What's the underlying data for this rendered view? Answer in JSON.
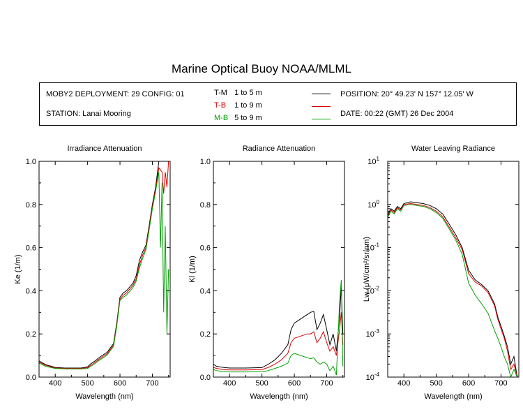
{
  "title": "Marine Optical Buoy NOAA/MLML",
  "info": {
    "deployment": "MOBY2 DEPLOYMENT: 29 CONFIG: 01",
    "station": "STATION: Lanai Mooring",
    "position": "POSITION: 20° 49.23' N   157° 12.05' W",
    "date": "DATE: 00:22 (GMT) 26 Dec 2004"
  },
  "legend": [
    {
      "code": "T-M",
      "range": "1 to 5  m",
      "color": "#000000"
    },
    {
      "code": "T-B",
      "range": "1 to 9  m",
      "color": "#dd0000"
    },
    {
      "code": "M-B",
      "range": "5 to 9  m",
      "color": "#00a000"
    }
  ],
  "chart_data": [
    {
      "type": "line",
      "title": "Irradiance Attenuation",
      "xlabel": "Wavelength (nm)",
      "ylabel": "Ke  (1/m)",
      "xlim": [
        350,
        755
      ],
      "ylim": [
        0,
        1.0
      ],
      "xticks": [
        400,
        500,
        600,
        700
      ],
      "yticks": [
        "0.0",
        "0.2",
        "0.4",
        "0.6",
        "0.8",
        "1.0"
      ],
      "series": [
        {
          "name": "T-M",
          "color": "#000000",
          "x": [
            350,
            370,
            400,
            430,
            460,
            480,
            500,
            510,
            520,
            540,
            560,
            580,
            590,
            600,
            610,
            620,
            640,
            650,
            660,
            670,
            680,
            690,
            700,
            710,
            720,
            730,
            735,
            740,
            745,
            750
          ],
          "y": [
            0.075,
            0.058,
            0.045,
            0.042,
            0.042,
            0.042,
            0.048,
            0.062,
            0.072,
            0.095,
            0.115,
            0.155,
            0.25,
            0.37,
            0.39,
            0.4,
            0.435,
            0.47,
            0.54,
            0.58,
            0.61,
            0.7,
            0.8,
            0.88,
            1.0,
            1.0,
            1.0,
            1.0,
            1.0,
            1.0
          ]
        },
        {
          "name": "T-B",
          "color": "#dd0000",
          "x": [
            350,
            370,
            400,
            430,
            460,
            480,
            500,
            510,
            520,
            540,
            560,
            580,
            590,
            600,
            610,
            620,
            640,
            650,
            660,
            670,
            680,
            690,
            700,
            710,
            720,
            730,
            735,
            740,
            745,
            750
          ],
          "y": [
            0.07,
            0.055,
            0.042,
            0.04,
            0.04,
            0.04,
            0.044,
            0.055,
            0.065,
            0.088,
            0.108,
            0.148,
            0.24,
            0.36,
            0.38,
            0.39,
            0.425,
            0.455,
            0.52,
            0.565,
            0.6,
            0.69,
            0.79,
            0.87,
            0.97,
            0.95,
            0.85,
            0.95,
            0.88,
            1.0
          ]
        },
        {
          "name": "M-B",
          "color": "#00a000",
          "x": [
            350,
            370,
            400,
            430,
            460,
            480,
            500,
            510,
            520,
            540,
            560,
            580,
            590,
            600,
            610,
            620,
            640,
            650,
            660,
            670,
            680,
            690,
            700,
            710,
            720,
            725,
            730,
            735,
            740,
            745,
            750
          ],
          "y": [
            0.065,
            0.05,
            0.04,
            0.038,
            0.038,
            0.038,
            0.04,
            0.05,
            0.06,
            0.082,
            0.102,
            0.142,
            0.235,
            0.355,
            0.37,
            0.38,
            0.415,
            0.445,
            0.505,
            0.55,
            0.59,
            0.68,
            0.78,
            0.86,
            0.95,
            0.6,
            0.9,
            0.3,
            0.7,
            0.2,
            0.5
          ]
        }
      ]
    },
    {
      "type": "line",
      "title": "Radiance Attenuation",
      "xlabel": "Wavelength (nm)",
      "ylabel": "Kl  (1/m)",
      "xlim": [
        350,
        755
      ],
      "ylim": [
        0,
        1.0
      ],
      "xticks": [
        400,
        500,
        600,
        700
      ],
      "yticks": [
        "0.0",
        "0.2",
        "0.4",
        "0.6",
        "0.8",
        "1.0"
      ],
      "series": [
        {
          "name": "T-M",
          "color": "#000000",
          "x": [
            350,
            360,
            380,
            400,
            450,
            500,
            520,
            540,
            560,
            580,
            590,
            600,
            620,
            640,
            650,
            660,
            670,
            680,
            690,
            700,
            710,
            720,
            730,
            740,
            745,
            750
          ],
          "y": [
            0.06,
            0.05,
            0.045,
            0.042,
            0.042,
            0.044,
            0.06,
            0.08,
            0.11,
            0.15,
            0.22,
            0.25,
            0.27,
            0.29,
            0.3,
            0.305,
            0.22,
            0.25,
            0.29,
            0.22,
            0.15,
            0.2,
            0.12,
            0.28,
            0.42,
            0.2
          ]
        },
        {
          "name": "T-B",
          "color": "#dd0000",
          "x": [
            350,
            360,
            380,
            400,
            450,
            500,
            520,
            540,
            560,
            580,
            590,
            600,
            620,
            640,
            650,
            660,
            670,
            680,
            690,
            700,
            710,
            720,
            730,
            740,
            745,
            750
          ],
          "y": [
            0.045,
            0.04,
            0.035,
            0.033,
            0.033,
            0.035,
            0.045,
            0.06,
            0.08,
            0.11,
            0.16,
            0.18,
            0.19,
            0.2,
            0.2,
            0.21,
            0.16,
            0.18,
            0.21,
            0.16,
            0.12,
            0.14,
            0.1,
            0.22,
            0.3,
            0.15
          ]
        },
        {
          "name": "M-B",
          "color": "#00a000",
          "x": [
            350,
            360,
            380,
            400,
            450,
            500,
            520,
            540,
            560,
            580,
            590,
            600,
            620,
            640,
            650,
            660,
            670,
            680,
            690,
            700,
            710,
            720,
            730,
            740,
            745,
            750
          ],
          "y": [
            0.035,
            0.03,
            0.025,
            0.024,
            0.024,
            0.025,
            0.03,
            0.04,
            0.05,
            0.065,
            0.1,
            0.11,
            0.1,
            0.09,
            0.085,
            0.09,
            0.07,
            0.06,
            0.07,
            0.06,
            0.03,
            0.05,
            0.01,
            0.35,
            0.45,
            0.05
          ]
        }
      ]
    },
    {
      "type": "line",
      "title": "Water Leaving Radiance",
      "xlabel": "Wavelength (nm)",
      "ylabel": "Lw  (μW/cm²/sr/nm)",
      "xlim": [
        350,
        755
      ],
      "ylim": [
        0.0001,
        10
      ],
      "log_y": true,
      "xticks": [
        400,
        500,
        600,
        700
      ],
      "ytick_exponents": [
        1,
        0,
        -1,
        -2,
        -3,
        -4
      ],
      "series": [
        {
          "name": "T-M",
          "color": "#000000",
          "x": [
            350,
            360,
            370,
            380,
            390,
            400,
            420,
            440,
            460,
            480,
            500,
            520,
            540,
            560,
            580,
            600,
            620,
            640,
            660,
            680,
            690,
            700,
            710,
            720,
            730,
            740,
            750
          ],
          "y": [
            0.6,
            0.8,
            0.7,
            0.9,
            0.8,
            1.05,
            1.15,
            1.1,
            1.05,
            0.95,
            0.8,
            0.6,
            0.35,
            0.2,
            0.1,
            0.03,
            0.018,
            0.014,
            0.01,
            0.005,
            0.0025,
            0.0015,
            0.0009,
            0.0005,
            0.0002,
            0.0003,
            0.0001
          ]
        },
        {
          "name": "T-B",
          "color": "#dd0000",
          "x": [
            350,
            360,
            370,
            380,
            390,
            400,
            420,
            440,
            460,
            480,
            500,
            520,
            540,
            560,
            580,
            600,
            620,
            640,
            660,
            680,
            690,
            700,
            710,
            720,
            730,
            740,
            750
          ],
          "y": [
            0.55,
            0.75,
            0.65,
            0.85,
            0.75,
            1.0,
            1.05,
            1.0,
            0.95,
            0.85,
            0.7,
            0.52,
            0.3,
            0.17,
            0.09,
            0.025,
            0.016,
            0.013,
            0.009,
            0.0045,
            0.0022,
            0.0013,
            0.0008,
            0.0004,
            0.00015,
            0.0002,
            0.0001
          ]
        },
        {
          "name": "M-B",
          "color": "#00a000",
          "x": [
            350,
            360,
            370,
            380,
            390,
            400,
            420,
            440,
            460,
            480,
            500,
            520,
            540,
            560,
            580,
            600,
            620,
            640,
            660,
            680,
            690,
            700,
            710,
            720,
            730,
            740,
            750
          ],
          "y": [
            0.5,
            0.7,
            0.6,
            0.8,
            0.7,
            0.95,
            1.0,
            0.95,
            0.9,
            0.8,
            0.65,
            0.48,
            0.27,
            0.15,
            0.07,
            0.015,
            0.008,
            0.005,
            0.003,
            0.0012,
            0.0008,
            0.0005,
            0.0003,
            0.0002,
            0.0001,
            0.00015,
            0.0001
          ]
        }
      ]
    }
  ]
}
